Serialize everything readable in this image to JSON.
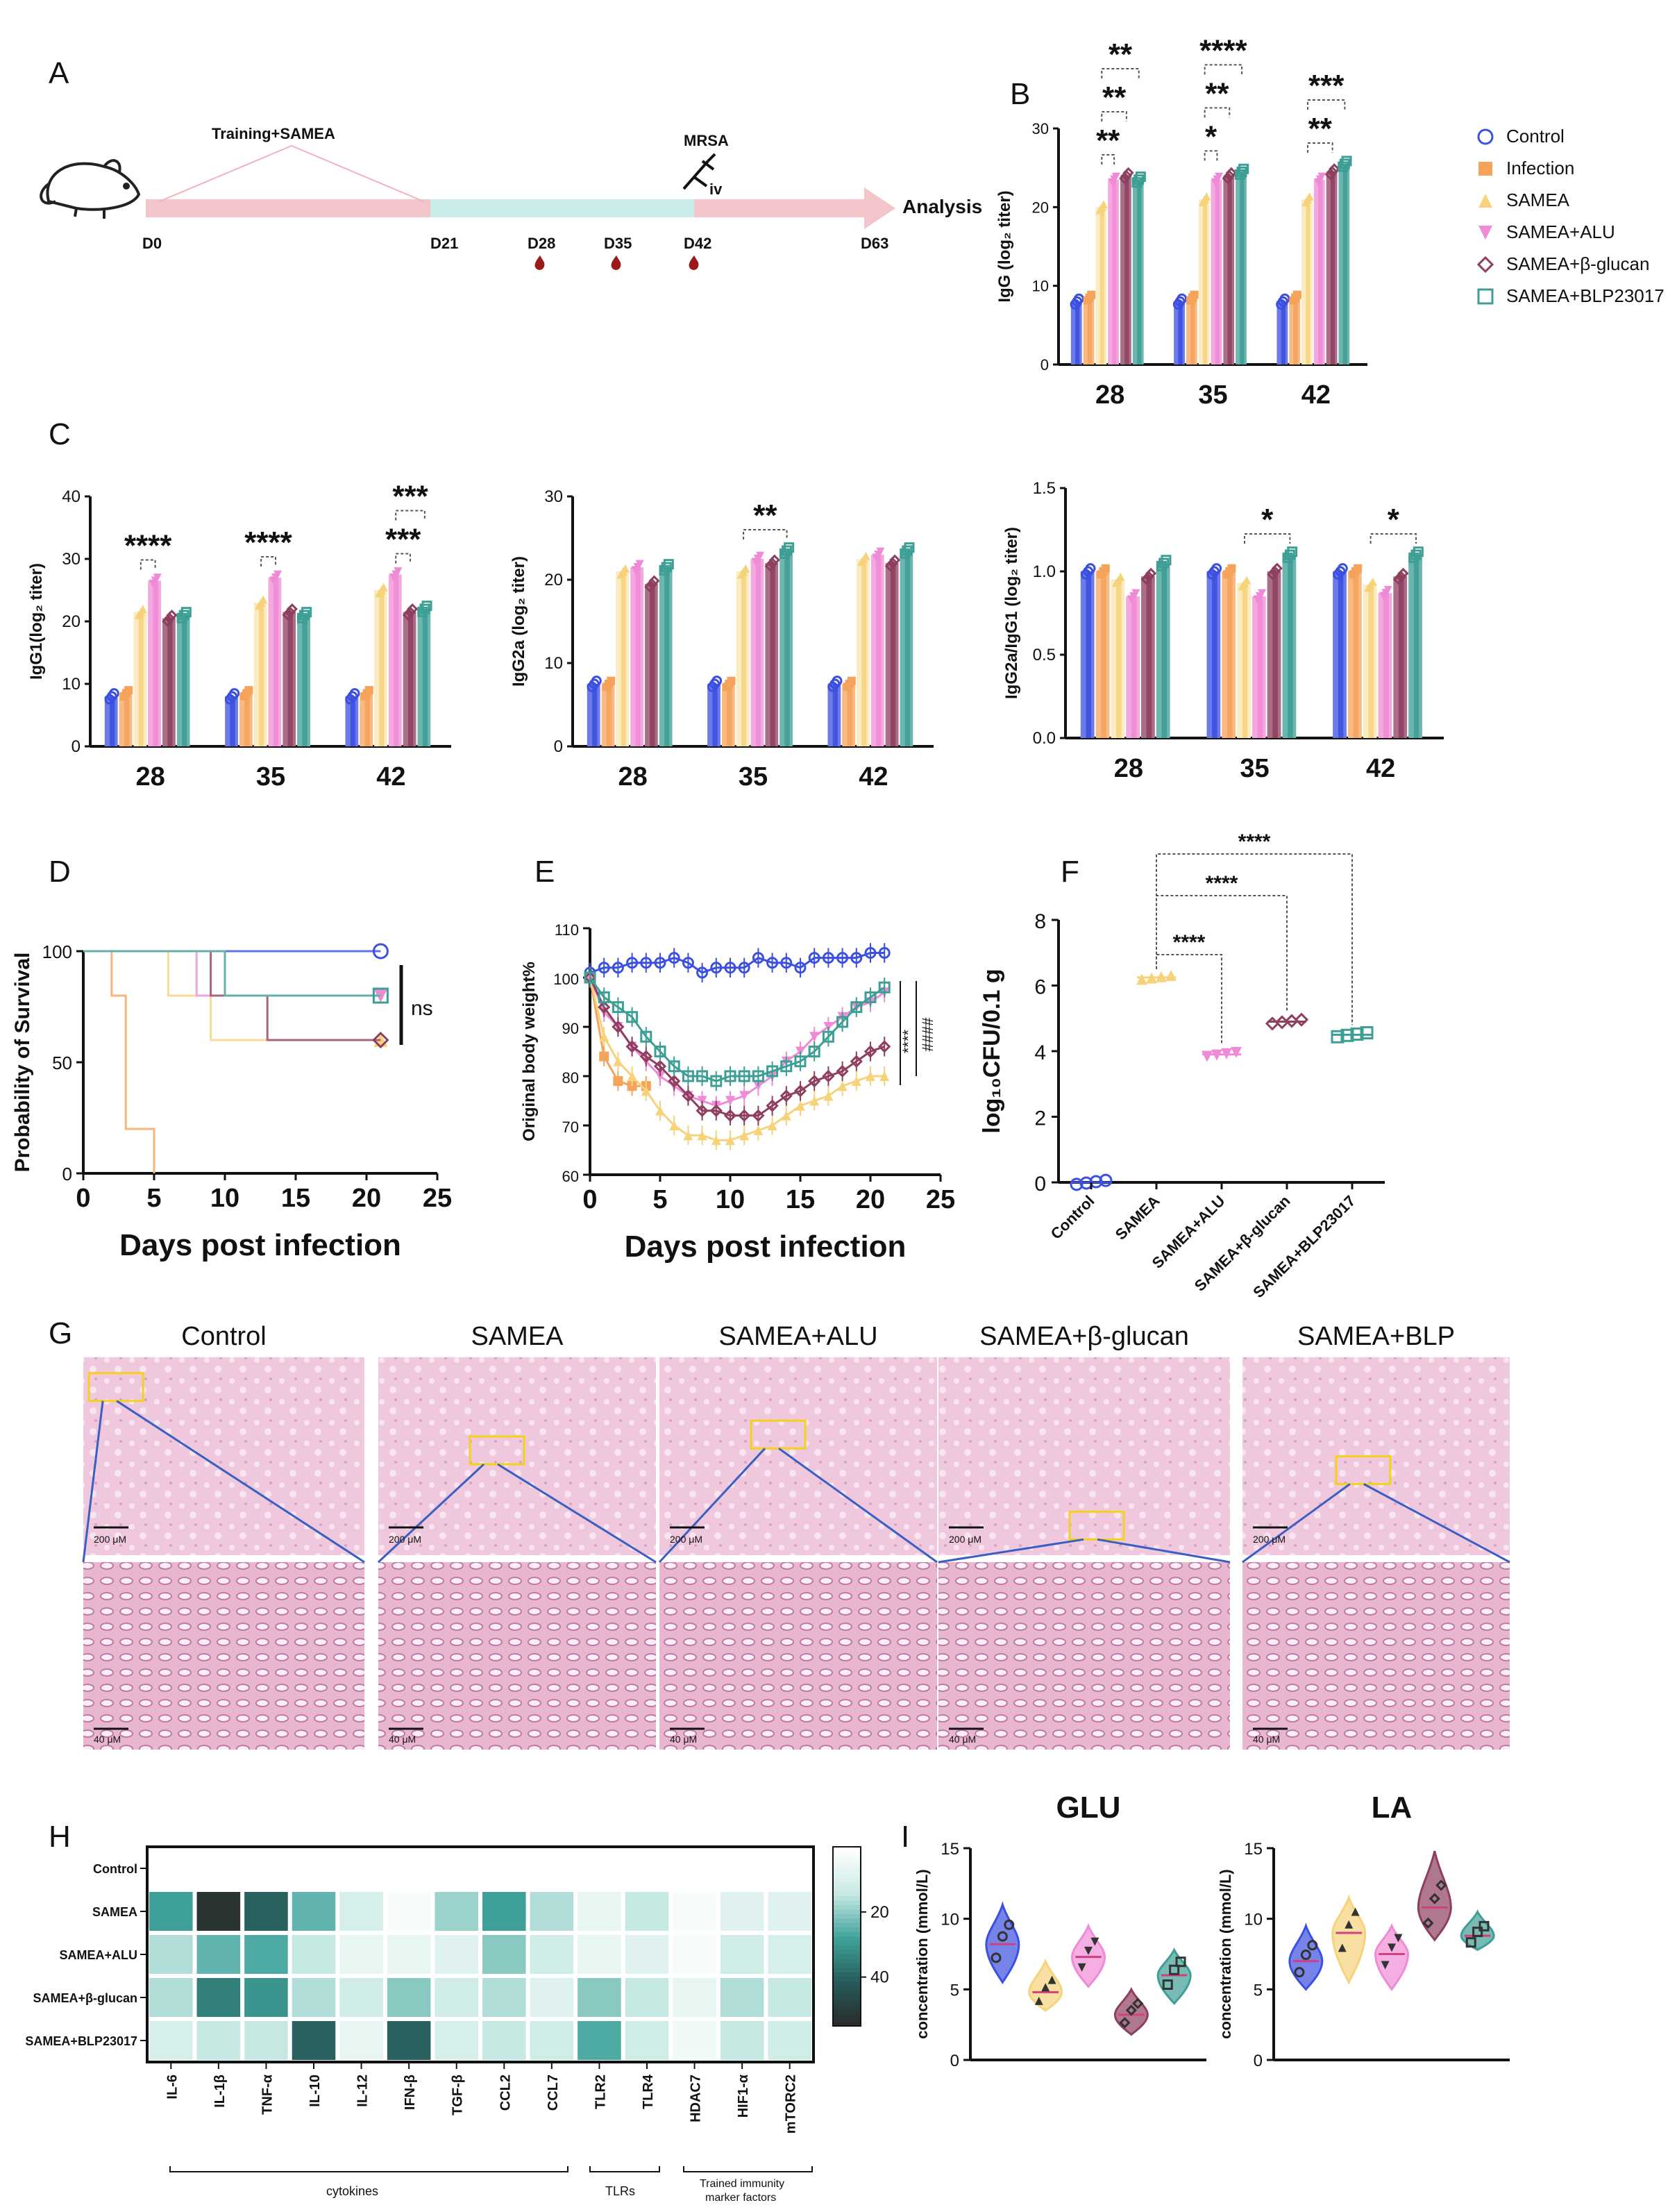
{
  "colors": {
    "control": "#3b4fe0",
    "infection": "#f5a25a",
    "samea": "#f6d37a",
    "alu": "#ef8bd6",
    "bglucan": "#8e3e5e",
    "blp": "#3c9e94",
    "text": "#111111",
    "bracket": "#444444",
    "timeline_pink": "#f6c8cc",
    "timeline_cyan": "#c8ece8",
    "drop": "#9b1b1b"
  },
  "panels": {
    "A": {
      "label": "A",
      "training": "Training+SAMEA",
      "mrsa": "MRSA",
      "route": "iv",
      "analysis": "Analysis",
      "days": [
        "D0",
        "D21",
        "D28",
        "D35",
        "D42",
        "D63"
      ],
      "blood_draw_days": [
        "D28",
        "D35",
        "D42"
      ],
      "icons": [
        "mouse-icon",
        "syringe-icon",
        "blood-drop-icon"
      ]
    },
    "B": {
      "label": "B"
    },
    "C": {
      "label": "C"
    },
    "D": {
      "label": "D"
    },
    "E": {
      "label": "E"
    },
    "F": {
      "label": "F"
    },
    "G": {
      "label": "G",
      "titles": [
        "Control",
        "SAMEA",
        "SAMEA+ALU",
        "SAMEA+β-glucan",
        "SAMEA+BLP"
      ],
      "scale_top": "200 μM",
      "scale_bottom": "40 μM"
    },
    "H": {
      "label": "H",
      "group_cytokines": "cytokines",
      "group_tlrs": "TLRs",
      "group_trained_1": "Trained immunity",
      "group_trained_2": "marker factors"
    },
    "I": {
      "label": "I"
    }
  },
  "legend": [
    "Control",
    "Infection",
    "SAMEA",
    "SAMEA+ALU",
    "SAMEA+β-glucan",
    "SAMEA+BLP23017"
  ],
  "chart_data": [
    {
      "id": "B",
      "type": "bar",
      "ylabel": "IgG (log₂ titer)",
      "categories": [
        "28",
        "35",
        "42"
      ],
      "yticks": [
        "0",
        "10",
        "20",
        "30"
      ],
      "ylim": [
        0,
        30
      ],
      "series": [
        {
          "name": "Control",
          "values": [
            8,
            8,
            8
          ]
        },
        {
          "name": "Infection",
          "values": [
            8.5,
            8.5,
            8.5
          ]
        },
        {
          "name": "SAMEA",
          "values": [
            20,
            21,
            21
          ]
        },
        {
          "name": "SAMEA+ALU",
          "values": [
            23.5,
            23.5,
            23.5
          ]
        },
        {
          "name": "SAMEA+β-glucan",
          "values": [
            24,
            24,
            24.5
          ]
        },
        {
          "name": "SAMEA+BLP23017",
          "values": [
            23.5,
            24.5,
            25.5
          ]
        }
      ],
      "significance": [
        {
          "group": "28",
          "from": 2,
          "to": 3,
          "label": "**"
        },
        {
          "group": "28",
          "from": 2,
          "to": 4,
          "label": "**"
        },
        {
          "group": "28",
          "from": 2,
          "to": 5,
          "label": "**"
        },
        {
          "group": "35",
          "from": 2,
          "to": 3,
          "label": "*"
        },
        {
          "group": "35",
          "from": 2,
          "to": 4,
          "label": "**"
        },
        {
          "group": "35",
          "from": 2,
          "to": 5,
          "label": "****"
        },
        {
          "group": "42",
          "from": 2,
          "to": 4,
          "label": "**"
        },
        {
          "group": "42",
          "from": 2,
          "to": 5,
          "label": "***"
        }
      ]
    },
    {
      "id": "C1",
      "type": "bar",
      "ylabel": "IgG1(log₂ titer)",
      "categories": [
        "28",
        "35",
        "42"
      ],
      "yticks": [
        "0",
        "10",
        "20",
        "30",
        "40"
      ],
      "ylim": [
        0,
        40
      ],
      "series": [
        {
          "name": "Control",
          "values": [
            8,
            8,
            8
          ]
        },
        {
          "name": "Infection",
          "values": [
            8.5,
            8.5,
            8.5
          ]
        },
        {
          "name": "SAMEA",
          "values": [
            21.5,
            23,
            25
          ]
        },
        {
          "name": "SAMEA+ALU",
          "values": [
            26.5,
            27,
            27.5
          ]
        },
        {
          "name": "SAMEA+β-glucan",
          "values": [
            20.5,
            21.5,
            21.5
          ]
        },
        {
          "name": "SAMEA+BLP23017",
          "values": [
            21,
            21,
            22
          ]
        }
      ],
      "significance": [
        {
          "group": "28",
          "from": 2,
          "to": 3,
          "label": "****"
        },
        {
          "group": "35",
          "from": 2,
          "to": 3,
          "label": "****"
        },
        {
          "group": "42",
          "from": 3,
          "to": 4,
          "label": "***"
        },
        {
          "group": "42",
          "from": 3,
          "to": 5,
          "label": "***"
        }
      ]
    },
    {
      "id": "C2",
      "type": "bar",
      "ylabel": "IgG2a (log₂ titer)",
      "categories": [
        "28",
        "35",
        "42"
      ],
      "yticks": [
        "0",
        "10",
        "20",
        "30"
      ],
      "ylim": [
        0,
        30
      ],
      "series": [
        {
          "name": "Control",
          "values": [
            7.5,
            7.5,
            7.5
          ]
        },
        {
          "name": "Infection",
          "values": [
            7.5,
            7.5,
            7.5
          ]
        },
        {
          "name": "SAMEA",
          "values": [
            21,
            21,
            22.5
          ]
        },
        {
          "name": "SAMEA+ALU",
          "values": [
            21.5,
            22.5,
            23
          ]
        },
        {
          "name": "SAMEA+β-glucan",
          "values": [
            19.5,
            22,
            22
          ]
        },
        {
          "name": "SAMEA+BLP23017",
          "values": [
            21.5,
            23.5,
            23.5
          ]
        }
      ],
      "significance": [
        {
          "group": "35",
          "from": 2,
          "to": 5,
          "label": "**"
        }
      ]
    },
    {
      "id": "C3",
      "type": "bar",
      "ylabel": "IgG2a/IgG1 (log₂ titer)",
      "categories": [
        "28",
        "35",
        "42"
      ],
      "yticks": [
        "0.0",
        "0.5",
        "1.0",
        "1.5"
      ],
      "ylim": [
        0,
        1.5
      ],
      "series": [
        {
          "name": "Control",
          "values": [
            1.0,
            1.0,
            1.0
          ]
        },
        {
          "name": "Infection",
          "values": [
            1.0,
            1.0,
            1.0
          ]
        },
        {
          "name": "SAMEA",
          "values": [
            0.95,
            0.93,
            0.92
          ]
        },
        {
          "name": "SAMEA+ALU",
          "values": [
            0.85,
            0.85,
            0.87
          ]
        },
        {
          "name": "SAMEA+β-glucan",
          "values": [
            0.97,
            1.0,
            0.97
          ]
        },
        {
          "name": "SAMEA+BLP23017",
          "values": [
            1.05,
            1.1,
            1.1
          ]
        }
      ],
      "significance": [
        {
          "group": "35",
          "from": 2,
          "to": 5,
          "label": "*"
        },
        {
          "group": "42",
          "from": 2,
          "to": 5,
          "label": "*"
        }
      ]
    },
    {
      "id": "D",
      "type": "line",
      "xlabel": "Days post infection",
      "ylabel": "Probability of Survival",
      "xticks": [
        "0",
        "5",
        "10",
        "15",
        "20",
        "25"
      ],
      "yticks": [
        "0",
        "50",
        "100"
      ],
      "xlim": [
        0,
        25
      ],
      "ylim": [
        0,
        100
      ],
      "annotation": "ns",
      "series": [
        {
          "name": "Control",
          "x": [
            0,
            21
          ],
          "y": [
            100,
            100
          ]
        },
        {
          "name": "Infection",
          "x": [
            0,
            2,
            2,
            3,
            3,
            4,
            4,
            5,
            5
          ],
          "y": [
            100,
            100,
            80,
            80,
            20,
            20,
            20,
            20,
            0
          ]
        },
        {
          "name": "SAMEA",
          "x": [
            0,
            6,
            6,
            9,
            9,
            13,
            13,
            21
          ],
          "y": [
            100,
            100,
            80,
            80,
            60,
            60,
            60,
            60
          ]
        },
        {
          "name": "SAMEA+ALU",
          "x": [
            0,
            8,
            8,
            21
          ],
          "y": [
            100,
            100,
            80,
            80
          ]
        },
        {
          "name": "SAMEA+β-glucan",
          "x": [
            0,
            9,
            9,
            13,
            13,
            21
          ],
          "y": [
            100,
            100,
            80,
            80,
            60,
            60
          ]
        },
        {
          "name": "SAMEA+BLP23017",
          "x": [
            0,
            10,
            10,
            21
          ],
          "y": [
            100,
            100,
            80,
            80
          ]
        }
      ]
    },
    {
      "id": "E",
      "type": "line",
      "xlabel": "Days post infection",
      "ylabel": "Original body weight%",
      "xticks": [
        "0",
        "5",
        "10",
        "15",
        "20",
        "25"
      ],
      "yticks": [
        "60",
        "70",
        "80",
        "90",
        "100",
        "110"
      ],
      "xlim": [
        0,
        25
      ],
      "ylim": [
        60,
        110
      ],
      "annotations": [
        "****",
        "####"
      ],
      "series": [
        {
          "name": "Control",
          "x": [
            0,
            1,
            2,
            3,
            4,
            5,
            6,
            7,
            8,
            9,
            10,
            11,
            12,
            13,
            14,
            15,
            16,
            17,
            18,
            19,
            20,
            21
          ],
          "y": [
            101,
            102,
            102,
            103,
            103,
            103,
            104,
            103,
            101,
            102,
            102,
            102,
            104,
            103,
            103,
            102,
            104,
            104,
            104,
            104,
            105,
            105
          ]
        },
        {
          "name": "Infection",
          "x": [
            0,
            1,
            2,
            3,
            4
          ],
          "y": [
            100,
            84,
            79,
            78,
            78
          ]
        },
        {
          "name": "SAMEA",
          "x": [
            0,
            1,
            2,
            3,
            4,
            5,
            6,
            7,
            8,
            9,
            10,
            11,
            12,
            13,
            14,
            15,
            16,
            17,
            18,
            19,
            20,
            21
          ],
          "y": [
            100,
            88,
            83,
            80,
            77,
            73,
            70,
            68,
            68,
            67,
            67,
            68,
            69,
            70,
            72,
            74,
            75,
            76,
            78,
            79,
            80,
            80
          ]
        },
        {
          "name": "SAMEA+ALU",
          "x": [
            0,
            1,
            2,
            3,
            4,
            5,
            6,
            7,
            8,
            9,
            10,
            11,
            12,
            13,
            14,
            15,
            16,
            17,
            18,
            19,
            20,
            21
          ],
          "y": [
            100,
            93,
            90,
            86,
            83,
            80,
            78,
            76,
            75,
            74,
            75,
            76,
            78,
            80,
            83,
            85,
            88,
            90,
            92,
            94,
            95,
            97
          ]
        },
        {
          "name": "SAMEA+β-glucan",
          "x": [
            0,
            1,
            2,
            3,
            4,
            5,
            6,
            7,
            8,
            9,
            10,
            11,
            12,
            13,
            14,
            15,
            16,
            17,
            18,
            19,
            20,
            21
          ],
          "y": [
            100,
            94,
            90,
            86,
            84,
            82,
            79,
            76,
            73,
            73,
            72,
            72,
            72,
            74,
            76,
            77,
            79,
            80,
            81,
            83,
            85,
            86
          ]
        },
        {
          "name": "SAMEA+BLP23017",
          "x": [
            0,
            1,
            2,
            3,
            4,
            5,
            6,
            7,
            8,
            9,
            10,
            11,
            12,
            13,
            14,
            15,
            16,
            17,
            18,
            19,
            20,
            21
          ],
          "y": [
            100,
            96,
            94,
            92,
            88,
            85,
            82,
            80,
            80,
            79,
            80,
            80,
            80,
            81,
            82,
            83,
            85,
            88,
            91,
            94,
            96,
            98
          ]
        }
      ]
    },
    {
      "id": "F",
      "type": "scatter",
      "ylabel": "log₁₀CFU/0.1 g",
      "categories": [
        "Control",
        "SAMEA",
        "SAMEA+ALU",
        "SAMEA+β-glucan",
        "SAMEA+BLP23017"
      ],
      "yticks": [
        "0",
        "2",
        "4",
        "6",
        "8"
      ],
      "ylim": [
        0,
        8
      ],
      "values": [
        0,
        6.25,
        3.9,
        4.9,
        4.5
      ],
      "significance": [
        {
          "from": 1,
          "to": 2,
          "label": "****"
        },
        {
          "from": 1,
          "to": 3,
          "label": "****"
        },
        {
          "from": 1,
          "to": 4,
          "label": "****"
        }
      ]
    },
    {
      "id": "H",
      "type": "heatmap",
      "rows": [
        "Control",
        "SAMEA",
        "SAMEA+ALU",
        "SAMEA+β-glucan",
        "SAMEA+BLP23017"
      ],
      "columns": [
        "IL-6",
        "IL-1β",
        "TNF-α",
        "IL-10",
        "IL-12",
        "IFN-β",
        "TGF-β",
        "CCL2",
        "CCL7",
        "TLR2",
        "TLR4",
        "HDAC7",
        "HIF1-α",
        "mTORC2"
      ],
      "colorbar_ticks": [
        "20",
        "40"
      ],
      "values": [
        [
          0,
          0,
          0,
          0,
          0,
          0,
          0,
          0,
          0,
          0,
          0,
          0,
          0,
          0
        ],
        [
          28,
          52,
          40,
          24,
          10,
          2,
          18,
          28,
          16,
          6,
          14,
          2,
          8,
          8
        ],
        [
          16,
          24,
          26,
          14,
          6,
          6,
          8,
          20,
          12,
          6,
          8,
          2,
          12,
          10
        ],
        [
          16,
          34,
          30,
          16,
          12,
          20,
          12,
          16,
          8,
          20,
          14,
          6,
          16,
          14
        ],
        [
          10,
          14,
          14,
          40,
          6,
          40,
          10,
          14,
          12,
          26,
          12,
          4,
          14,
          12
        ]
      ]
    },
    {
      "id": "I-GLU",
      "type": "violin",
      "title": "GLU",
      "ylabel": "concentration  (mmol/L)",
      "yticks": [
        "0",
        "5",
        "10",
        "15"
      ],
      "ylim": [
        0,
        15
      ],
      "series": [
        {
          "name": "Control",
          "median": 8.2,
          "range": [
            5.5,
            11
          ]
        },
        {
          "name": "SAMEA",
          "median": 4.8,
          "range": [
            3.5,
            7.0
          ]
        },
        {
          "name": "SAMEA+ALU",
          "median": 7.3,
          "range": [
            5.2,
            9.5
          ]
        },
        {
          "name": "SAMEA+β-glucan",
          "median": 3.2,
          "range": [
            1.8,
            5.0
          ]
        },
        {
          "name": "SAMEA+BLP23017",
          "median": 6.0,
          "range": [
            4.0,
            7.8
          ]
        }
      ]
    },
    {
      "id": "I-LA",
      "type": "violin",
      "title": "LA",
      "ylabel": "concentration  (mmol/L)",
      "yticks": [
        "0",
        "5",
        "10",
        "15"
      ],
      "ylim": [
        0,
        15
      ],
      "series": [
        {
          "name": "Control",
          "median": 7.0,
          "range": [
            5.0,
            9.5
          ]
        },
        {
          "name": "SAMEA",
          "median": 9.0,
          "range": [
            5.5,
            11.5
          ]
        },
        {
          "name": "SAMEA+ALU",
          "median": 7.5,
          "range": [
            5.0,
            9.5
          ]
        },
        {
          "name": "SAMEA+β-glucan",
          "median": 10.8,
          "range": [
            8.5,
            14.8
          ]
        },
        {
          "name": "SAMEA+BLP23017",
          "median": 8.8,
          "range": [
            7.8,
            10.5
          ]
        }
      ]
    }
  ]
}
